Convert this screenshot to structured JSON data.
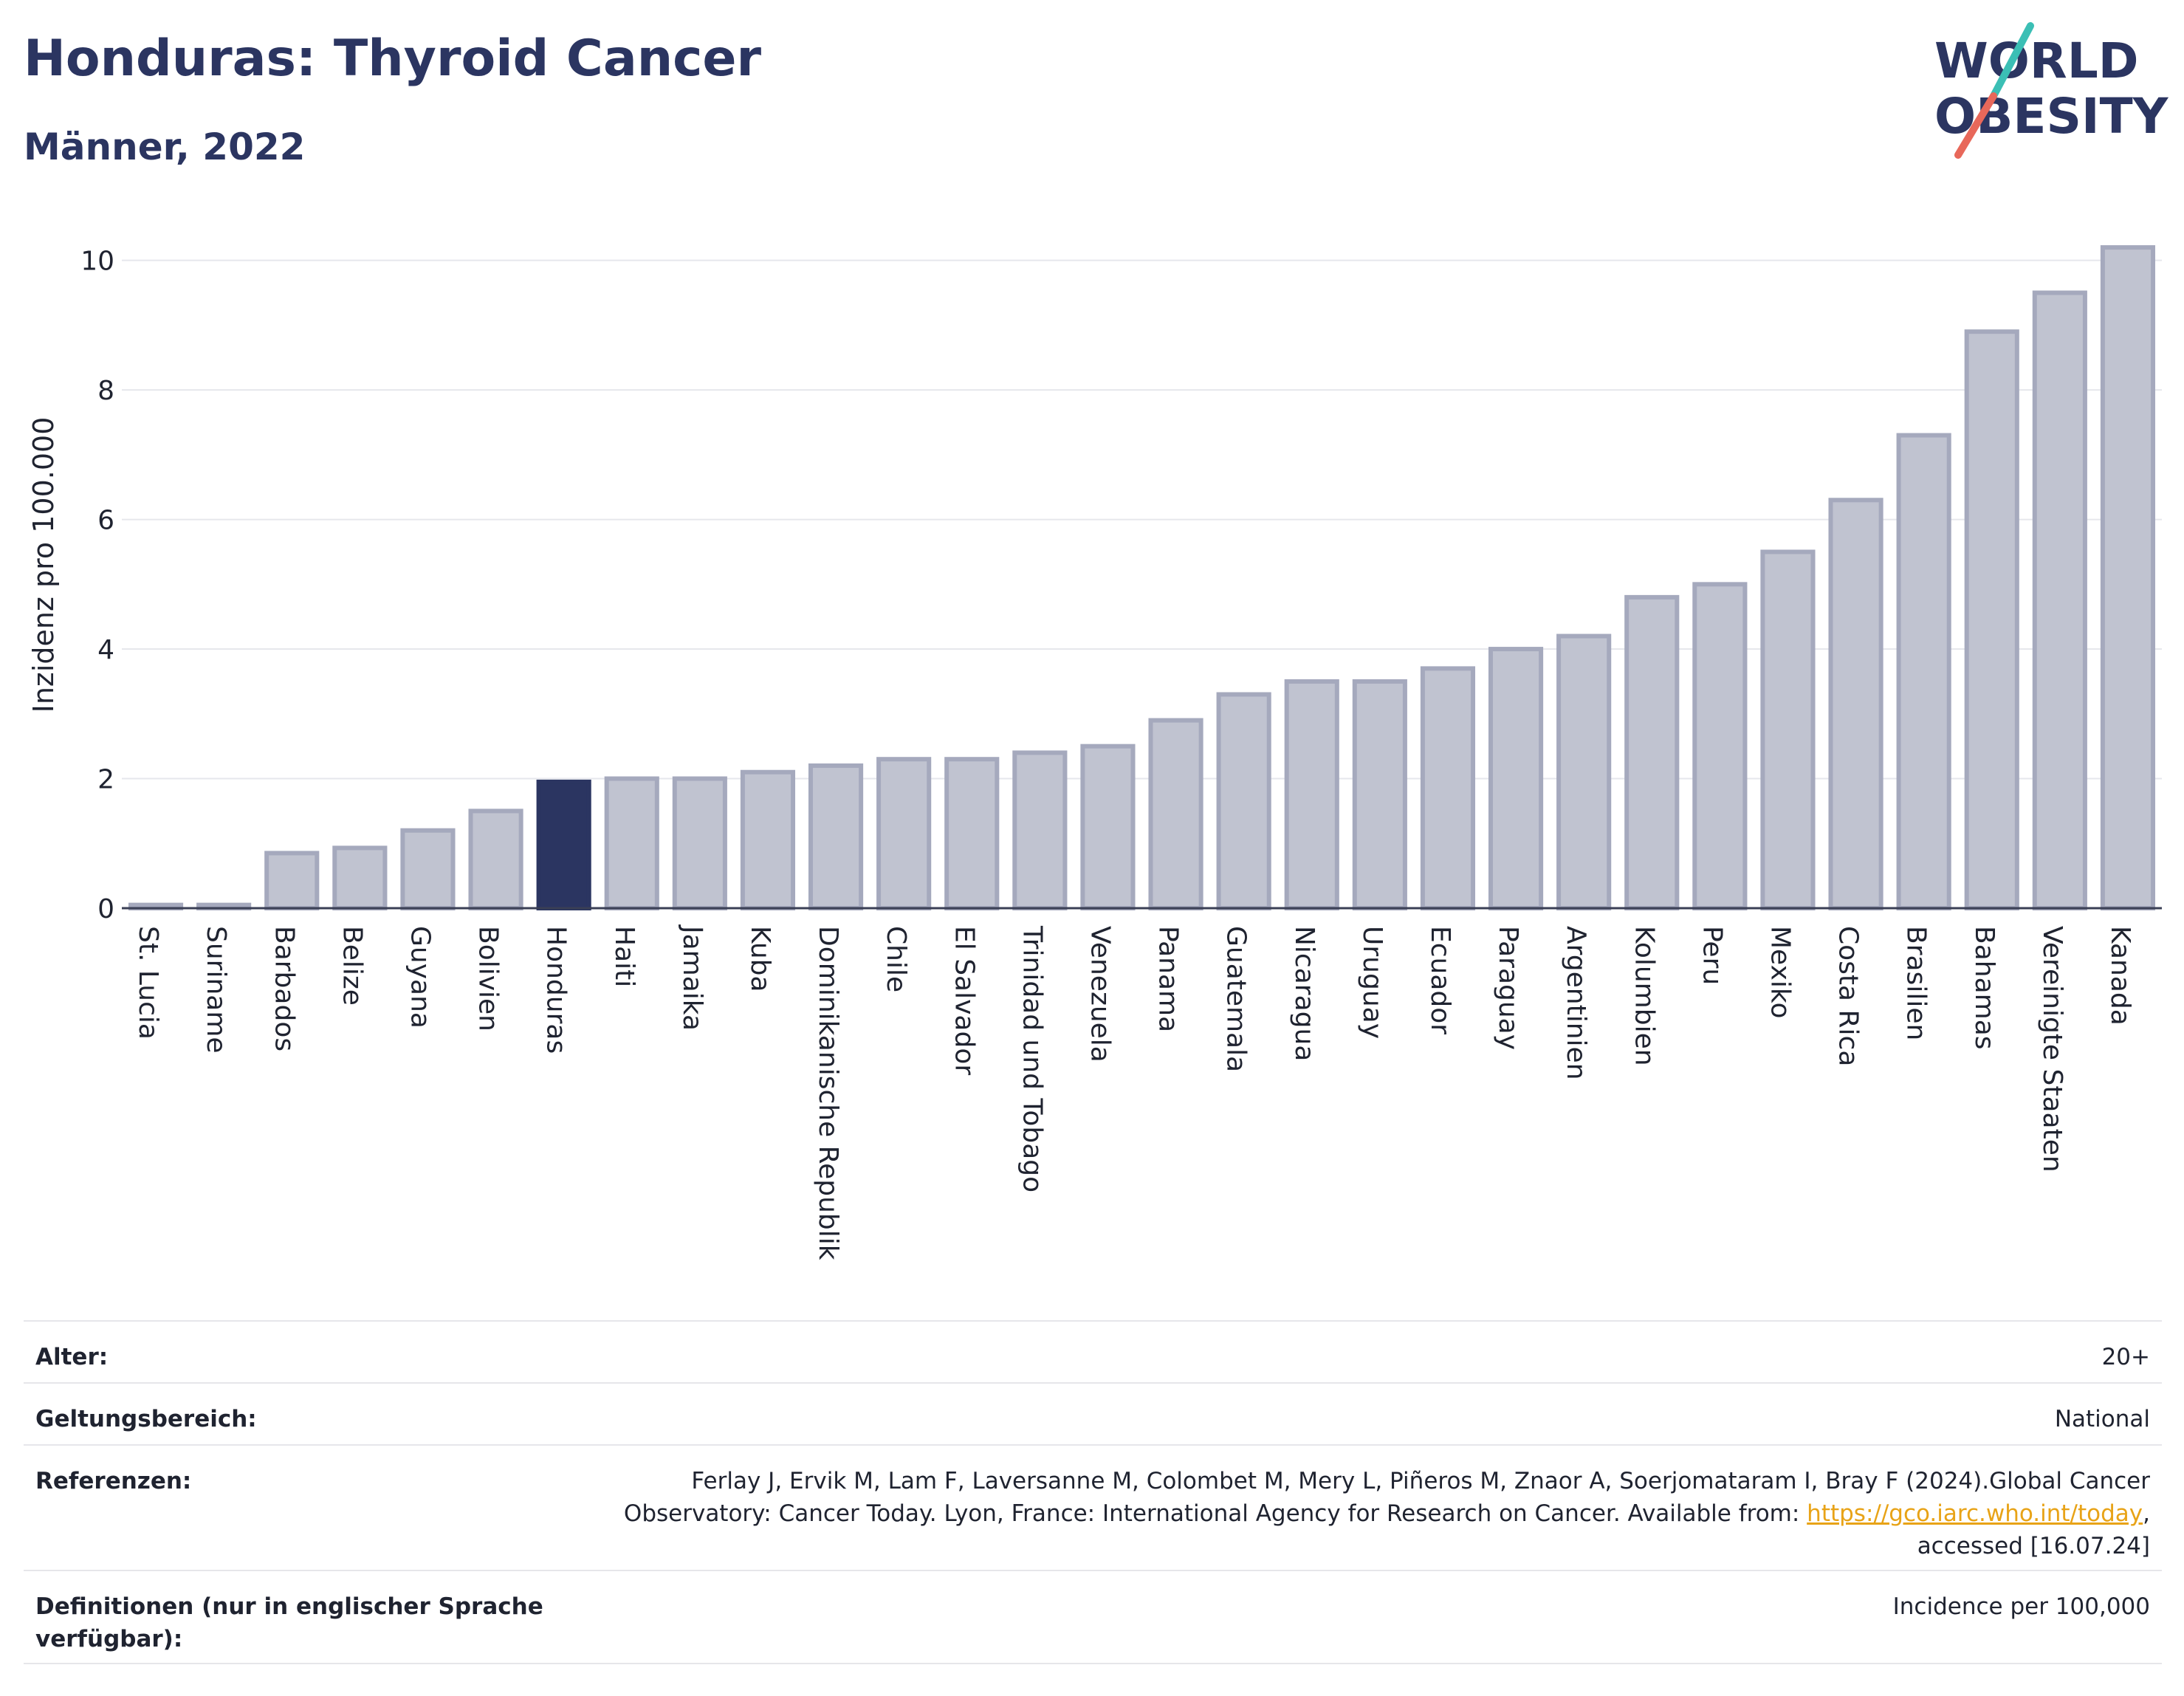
{
  "header": {
    "title": "Honduras: Thyroid Cancer",
    "subtitle": "Männer, 2022"
  },
  "logo": {
    "line1": "WORLD",
    "line2": "OBESITY",
    "accent_teal": "#3bbfb5",
    "accent_red": "#e8685a",
    "text_color": "#2b3561"
  },
  "chart_data": {
    "type": "bar",
    "ylabel": "Inzidenz pro 100.000",
    "xlabel": "",
    "ylim": [
      0,
      10.6
    ],
    "yticks": [
      0,
      2,
      4,
      6,
      8,
      10
    ],
    "grid": true,
    "highlight_category": "Honduras",
    "highlight_color": "#2b3561",
    "bar_color": "#c0c3d0",
    "bar_border_color": "#a5a9bd",
    "categories": [
      "St. Lucia",
      "Suriname",
      "Barbados",
      "Belize",
      "Guyana",
      "Bolivien",
      "Honduras",
      "Haiti",
      "Jamaika",
      "Kuba",
      "Dominikanische Republik",
      "Chile",
      "El Salvador",
      "Trinidad und Tobago",
      "Venezuela",
      "Panama",
      "Guatemala",
      "Nicaragua",
      "Uruguay",
      "Ecuador",
      "Paraguay",
      "Argentinien",
      "Kolumbien",
      "Peru",
      "Mexiko",
      "Costa Rica",
      "Brasilien",
      "Bahamas",
      "Vereinigte Staaten",
      "Kanada"
    ],
    "values": [
      0.05,
      0.05,
      0.85,
      0.93,
      1.2,
      1.5,
      1.95,
      2.0,
      2.0,
      2.1,
      2.2,
      2.3,
      2.3,
      2.4,
      2.5,
      2.9,
      3.3,
      3.5,
      3.5,
      3.7,
      4.0,
      4.2,
      4.8,
      5.0,
      5.5,
      6.3,
      7.3,
      8.9,
      9.5,
      10.2
    ]
  },
  "info": {
    "rows": [
      {
        "label": "Alter:",
        "value": "20+"
      },
      {
        "label": "Geltungsbereich:",
        "value": "National"
      },
      {
        "label": "Referenzen:",
        "value": "Ferlay J, Ervik M, Lam F, Laversanne M, Colombet M, Mery L, Piñeros M, Znaor A, Soerjomataram I, Bray F (2024).Global Cancer Observatory: Cancer Today. Lyon, France: International Agency for Research on Cancer. Available from: ",
        "link": "https://gco.iarc.who.int/today",
        "suffix": ", accessed [16.07.24]"
      },
      {
        "label": "Definitionen (nur in englischer Sprache verfügbar):",
        "value": "Incidence per 100,000"
      }
    ]
  }
}
